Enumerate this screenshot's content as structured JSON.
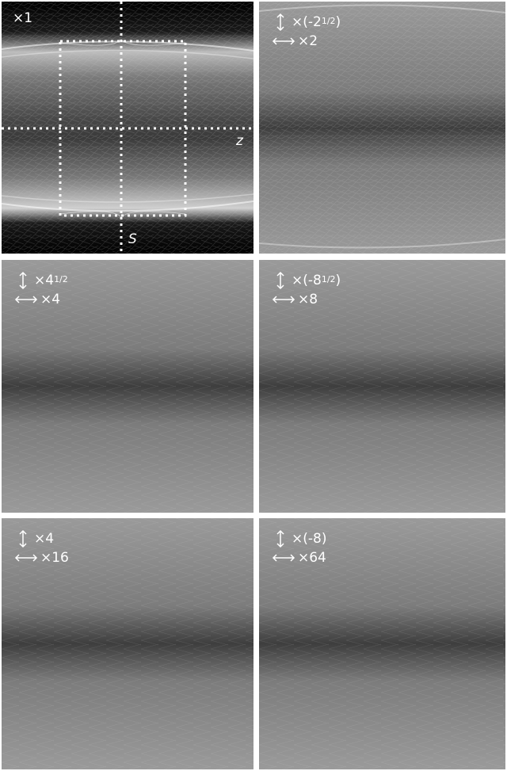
{
  "panels": [
    {
      "id": "p1",
      "scale_label": "×1"
    },
    {
      "id": "p2",
      "vertical_label": "×(-2",
      "vertical_sup": "1/2",
      "vertical_tail": ")",
      "horizontal_label": "×2"
    },
    {
      "id": "p3",
      "vertical_label": "×4",
      "vertical_sup": "1/2",
      "vertical_tail": "",
      "horizontal_label": "×4"
    },
    {
      "id": "p4",
      "vertical_label": "×(-8",
      "vertical_sup": "1/2",
      "vertical_tail": ")",
      "horizontal_label": "×8"
    },
    {
      "id": "p5",
      "vertical_label": "×4",
      "vertical_sup": "",
      "vertical_tail": "",
      "horizontal_label": "×16"
    },
    {
      "id": "p6",
      "vertical_label": "×(-8)",
      "vertical_sup": "",
      "vertical_tail": "",
      "horizontal_label": "×64"
    }
  ],
  "axes": {
    "horizontal": "z",
    "vertical": "S"
  },
  "colors": {
    "label": "#ffffff",
    "panel_gray": "#6a6a6a",
    "panel_black": "#000000",
    "divider": "#ffffff"
  }
}
